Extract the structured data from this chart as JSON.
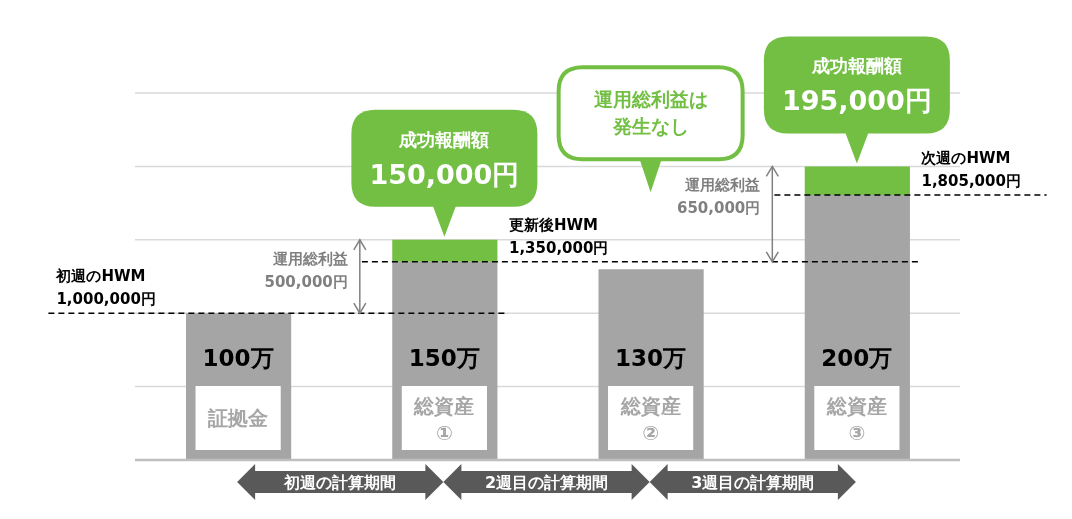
{
  "chart_data": {
    "type": "bar",
    "categories": [
      "証拠金",
      "総資産①",
      "総資産②",
      "総資産③"
    ],
    "series": [
      {
        "color": "#a5a5a5",
        "values": [
          1000000,
          1350000,
          1300000,
          1805000
        ]
      },
      {
        "color": "#72bf44",
        "values": [
          null,
          150000,
          null,
          195000
        ],
        "value_labels": [
          null,
          "150,000円",
          null,
          "195,000円"
        ]
      }
    ],
    "stacked": true,
    "grid": "y",
    "tick_labels": "x",
    "ref_lines": [
      {
        "axis": "y",
        "value": 1000000,
        "label": "初週のHWM\n1,000,000円",
        "color": "#000000",
        "line_style": "dashed"
      },
      {
        "axis": "y",
        "value": 1350000,
        "label": "更新後HWM\n1,350,000円",
        "color": "#000000",
        "line_style": "dashed"
      },
      {
        "axis": "y",
        "value": 1805000,
        "label": "次週のHWM\n1,805,000円",
        "color": "#000000",
        "line_style": "dashed"
      }
    ],
    "annotations": [
      "運用総利益\n500,000円",
      "運用総利益\n650,000円",
      "運用総利益は発生なし",
      "初週の計算期間",
      "2週目の計算期間",
      "3週目の計算期間",
      "成功報酬額",
      "成功報酬額",
      "100万",
      "150万",
      "130万",
      "200万"
    ]
  }
}
